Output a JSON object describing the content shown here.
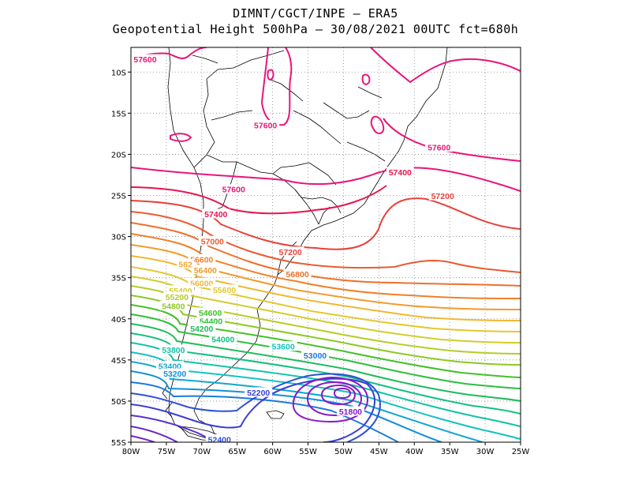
{
  "title": {
    "line1": "DIMNT/CGCT/INPE –  ERA5",
    "line2": "Geopotential Height 500hPa –  30/08/2021 00UTC fct=680h"
  },
  "map": {
    "lon_range": [
      -80,
      -25
    ],
    "lat_range": [
      -55,
      -7
    ],
    "x_ticks": [
      {
        "value": -80,
        "label": "80W"
      },
      {
        "value": -75,
        "label": "75W"
      },
      {
        "value": -70,
        "label": "70W"
      },
      {
        "value": -65,
        "label": "65W"
      },
      {
        "value": -60,
        "label": "60W"
      },
      {
        "value": -55,
        "label": "55W"
      },
      {
        "value": -50,
        "label": "50W"
      },
      {
        "value": -45,
        "label": "45W"
      },
      {
        "value": -40,
        "label": "40W"
      },
      {
        "value": -35,
        "label": "35W"
      },
      {
        "value": -30,
        "label": "30W"
      },
      {
        "value": -25,
        "label": "25W"
      }
    ],
    "y_ticks": [
      {
        "value": -10,
        "label": "10S"
      },
      {
        "value": -15,
        "label": "15S"
      },
      {
        "value": -20,
        "label": "20S"
      },
      {
        "value": -25,
        "label": "25S"
      },
      {
        "value": -30,
        "label": "30S"
      },
      {
        "value": -35,
        "label": "35S"
      },
      {
        "value": -40,
        "label": "40S"
      },
      {
        "value": -45,
        "label": "45S"
      },
      {
        "value": -50,
        "label": "50S"
      },
      {
        "value": -55,
        "label": "55S"
      }
    ],
    "grid": "dotted",
    "contour_labels": [
      {
        "text": "57600",
        "lon": -78,
        "lat": -8.5,
        "color": "#e8157a"
      },
      {
        "text": "57600",
        "lon": -61,
        "lat": -16.5,
        "color": "#e8157a"
      },
      {
        "text": "57600",
        "lon": -36.5,
        "lat": -19.2,
        "color": "#e8157a"
      },
      {
        "text": "57600",
        "lon": -65.5,
        "lat": -24.3,
        "color": "#e8157a"
      },
      {
        "text": "57400",
        "lon": -42,
        "lat": -22.2,
        "color": "#e8154e"
      },
      {
        "text": "57400",
        "lon": -68,
        "lat": -27.3,
        "color": "#e8154e"
      },
      {
        "text": "57200",
        "lon": -36,
        "lat": -25.1,
        "color": "#e8413a"
      },
      {
        "text": "57200",
        "lon": -57.5,
        "lat": -31.9,
        "color": "#e8413a"
      },
      {
        "text": "57000",
        "lon": -68.5,
        "lat": -30.6,
        "color": "#ea5a2e"
      },
      {
        "text": "56800",
        "lon": -56.5,
        "lat": -34.6,
        "color": "#ef6f2a"
      },
      {
        "text": "56600",
        "lon": -70,
        "lat": -32.8,
        "color": "#f08028"
      },
      {
        "text": "56400",
        "lon": -69.5,
        "lat": -34.1,
        "color": "#f39a2b"
      },
      {
        "text": "562",
        "lon": -72.3,
        "lat": -33.4,
        "color": "#f5a832"
      },
      {
        "text": "56000",
        "lon": -70,
        "lat": -35.7,
        "color": "#f1b830"
      },
      {
        "text": "55600",
        "lon": -66.8,
        "lat": -36.5,
        "color": "#e4c82e"
      },
      {
        "text": "55400",
        "lon": -73,
        "lat": -36.6,
        "color": "#d3cc2a"
      },
      {
        "text": "55200",
        "lon": -73.5,
        "lat": -37.4,
        "color": "#b6cc26"
      },
      {
        "text": "54800",
        "lon": -74,
        "lat": -38.5,
        "color": "#8cc825"
      },
      {
        "text": "54600",
        "lon": -68.8,
        "lat": -39.3,
        "color": "#43c028"
      },
      {
        "text": "54400",
        "lon": -68.7,
        "lat": -40.3,
        "color": "#2cbf3c"
      },
      {
        "text": "54200",
        "lon": -70,
        "lat": -41.2,
        "color": "#1cbc5b"
      },
      {
        "text": "54000",
        "lon": -67,
        "lat": -42.5,
        "color": "#13c081"
      },
      {
        "text": "53800",
        "lon": -74,
        "lat": -43.8,
        "color": "#11c3a6"
      },
      {
        "text": "53600",
        "lon": -58.5,
        "lat": -43.4,
        "color": "#12c2c0"
      },
      {
        "text": "53400",
        "lon": -74.5,
        "lat": -45.8,
        "color": "#11a7cf"
      },
      {
        "text": "53200",
        "lon": -73.8,
        "lat": -46.7,
        "color": "#1190d8"
      },
      {
        "text": "53000",
        "lon": -54,
        "lat": -44.5,
        "color": "#1a79dc"
      },
      {
        "text": "52200",
        "lon": -62,
        "lat": -49,
        "color": "#3b3fd4"
      },
      {
        "text": "51800",
        "lon": -49,
        "lat": -51.3,
        "color": "#8a17c8"
      },
      {
        "text": "52400",
        "lon": -67.5,
        "lat": -54.7,
        "color": "#2e50d6"
      }
    ]
  }
}
